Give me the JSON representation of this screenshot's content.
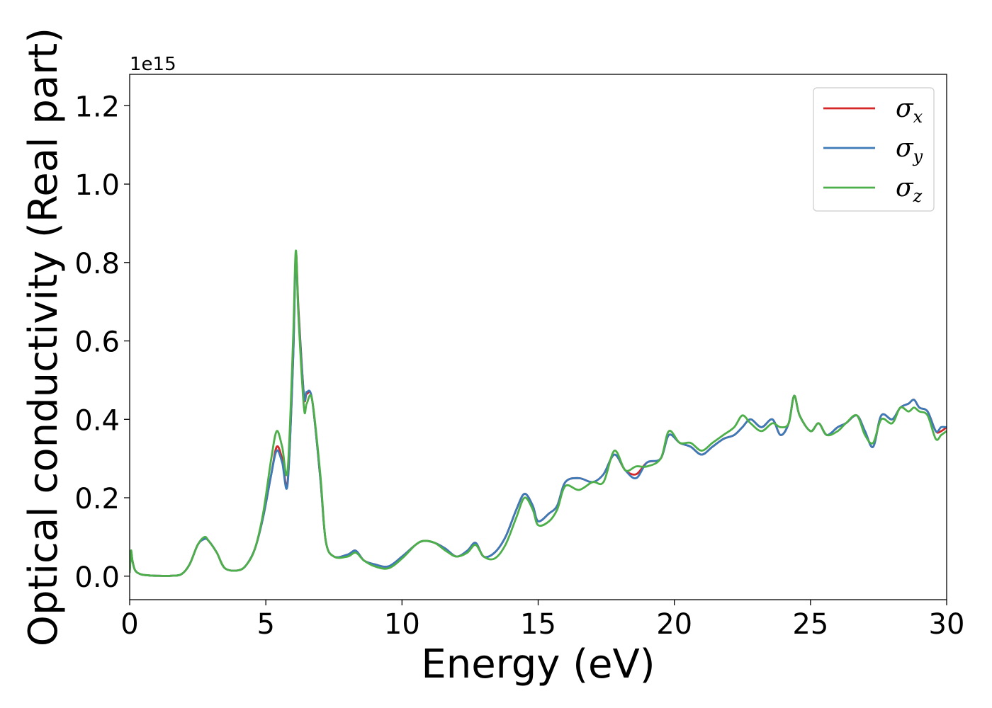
{
  "chart_data": {
    "type": "line",
    "xlabel": "Energy (eV)",
    "ylabel": "Optical conductivity (Real part)",
    "y_offset_label": "1e15",
    "xlim": [
      0,
      30
    ],
    "ylim": [
      -0.06,
      1.28
    ],
    "grid": false,
    "legend_position": "top-right",
    "x_ticks": [
      0,
      5,
      10,
      15,
      20,
      25,
      30
    ],
    "x_tick_labels": [
      "0",
      "5",
      "10",
      "15",
      "20",
      "25",
      "30"
    ],
    "y_ticks": [
      0.0,
      0.2,
      0.4,
      0.6,
      0.8,
      1.0,
      1.2
    ],
    "y_tick_labels": [
      "0.0",
      "0.2",
      "0.4",
      "0.6",
      "0.8",
      "1.0",
      "1.2"
    ],
    "x": [
      0,
      0.05,
      0.1,
      0.2,
      0.4,
      0.7,
      1.0,
      1.5,
      1.9,
      2.2,
      2.5,
      2.75,
      2.9,
      3.2,
      3.5,
      4.0,
      4.3,
      4.6,
      4.9,
      5.2,
      5.4,
      5.6,
      5.8,
      6.0,
      6.1,
      6.2,
      6.4,
      6.5,
      6.7,
      7.0,
      7.2,
      7.5,
      8.0,
      8.3,
      8.6,
      9.0,
      9.5,
      10.0,
      10.5,
      10.8,
      11.2,
      11.6,
      12.0,
      12.4,
      12.7,
      13.0,
      13.4,
      13.8,
      14.2,
      14.5,
      14.8,
      15.0,
      15.4,
      15.7,
      16.0,
      16.5,
      17.0,
      17.4,
      17.8,
      18.2,
      18.6,
      19.0,
      19.5,
      19.8,
      20.2,
      20.6,
      21.0,
      21.4,
      21.8,
      22.2,
      22.5,
      22.8,
      23.2,
      23.6,
      23.9,
      24.2,
      24.4,
      24.6,
      25.0,
      25.3,
      25.6,
      26.0,
      26.3,
      26.7,
      27.0,
      27.3,
      27.6,
      28.0,
      28.3,
      28.6,
      28.8,
      29.0,
      29.3,
      29.6,
      29.8,
      30.0
    ],
    "series": [
      {
        "name": "σx",
        "label_base": "σ",
        "label_sub": "x",
        "color": "#d62728",
        "values": [
          0.01,
          0.06,
          0.04,
          0.015,
          0.005,
          0.002,
          0.001,
          0.001,
          0.005,
          0.03,
          0.08,
          0.095,
          0.09,
          0.06,
          0.02,
          0.015,
          0.03,
          0.07,
          0.15,
          0.26,
          0.33,
          0.3,
          0.24,
          0.55,
          0.82,
          0.68,
          0.46,
          0.465,
          0.45,
          0.25,
          0.09,
          0.05,
          0.055,
          0.065,
          0.04,
          0.03,
          0.025,
          0.05,
          0.08,
          0.09,
          0.085,
          0.07,
          0.05,
          0.065,
          0.085,
          0.05,
          0.06,
          0.1,
          0.17,
          0.21,
          0.18,
          0.14,
          0.16,
          0.18,
          0.24,
          0.25,
          0.24,
          0.26,
          0.31,
          0.27,
          0.26,
          0.29,
          0.3,
          0.36,
          0.34,
          0.33,
          0.31,
          0.33,
          0.35,
          0.36,
          0.38,
          0.4,
          0.38,
          0.4,
          0.36,
          0.39,
          0.46,
          0.41,
          0.37,
          0.39,
          0.36,
          0.38,
          0.39,
          0.41,
          0.37,
          0.33,
          0.41,
          0.4,
          0.43,
          0.44,
          0.45,
          0.43,
          0.42,
          0.37,
          0.37,
          0.38
        ]
      },
      {
        "name": "σy",
        "label_base": "σ",
        "label_sub": "y",
        "color": "#3d7ab8",
        "values": [
          0.01,
          0.06,
          0.04,
          0.015,
          0.005,
          0.002,
          0.001,
          0.001,
          0.005,
          0.03,
          0.08,
          0.095,
          0.09,
          0.06,
          0.02,
          0.015,
          0.03,
          0.07,
          0.15,
          0.26,
          0.32,
          0.29,
          0.235,
          0.55,
          0.81,
          0.67,
          0.46,
          0.47,
          0.45,
          0.25,
          0.09,
          0.05,
          0.055,
          0.065,
          0.04,
          0.03,
          0.025,
          0.05,
          0.08,
          0.09,
          0.085,
          0.07,
          0.05,
          0.065,
          0.085,
          0.05,
          0.06,
          0.1,
          0.17,
          0.21,
          0.18,
          0.14,
          0.16,
          0.18,
          0.24,
          0.25,
          0.24,
          0.26,
          0.31,
          0.27,
          0.25,
          0.29,
          0.3,
          0.36,
          0.34,
          0.33,
          0.31,
          0.33,
          0.35,
          0.36,
          0.38,
          0.4,
          0.38,
          0.4,
          0.36,
          0.39,
          0.46,
          0.41,
          0.37,
          0.39,
          0.36,
          0.38,
          0.39,
          0.41,
          0.37,
          0.33,
          0.41,
          0.4,
          0.43,
          0.44,
          0.45,
          0.43,
          0.42,
          0.37,
          0.38,
          0.38
        ]
      },
      {
        "name": "σz",
        "label_base": "σ",
        "label_sub": "z",
        "color": "#4daf4a",
        "values": [
          0.01,
          0.065,
          0.04,
          0.015,
          0.005,
          0.002,
          0.001,
          0.001,
          0.005,
          0.03,
          0.08,
          0.1,
          0.09,
          0.06,
          0.02,
          0.015,
          0.03,
          0.07,
          0.16,
          0.3,
          0.37,
          0.33,
          0.27,
          0.6,
          0.83,
          0.66,
          0.43,
          0.44,
          0.45,
          0.26,
          0.09,
          0.05,
          0.05,
          0.06,
          0.04,
          0.025,
          0.02,
          0.045,
          0.08,
          0.09,
          0.085,
          0.065,
          0.05,
          0.06,
          0.08,
          0.05,
          0.045,
          0.08,
          0.15,
          0.2,
          0.17,
          0.13,
          0.14,
          0.17,
          0.23,
          0.22,
          0.24,
          0.24,
          0.32,
          0.27,
          0.28,
          0.28,
          0.3,
          0.37,
          0.34,
          0.34,
          0.32,
          0.34,
          0.36,
          0.38,
          0.41,
          0.39,
          0.37,
          0.39,
          0.38,
          0.39,
          0.46,
          0.41,
          0.37,
          0.39,
          0.36,
          0.37,
          0.39,
          0.41,
          0.36,
          0.34,
          0.4,
          0.39,
          0.43,
          0.42,
          0.43,
          0.42,
          0.41,
          0.35,
          0.36,
          0.37
        ]
      }
    ]
  }
}
